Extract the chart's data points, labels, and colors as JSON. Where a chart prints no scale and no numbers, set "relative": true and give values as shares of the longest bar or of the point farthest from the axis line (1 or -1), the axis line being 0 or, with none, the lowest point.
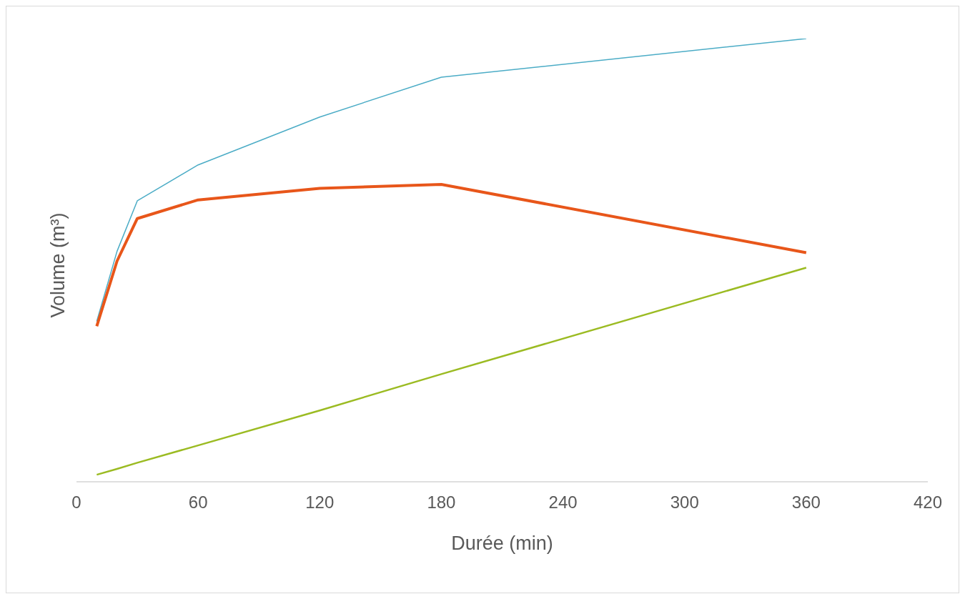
{
  "chart_data": {
    "type": "line",
    "relative": true,
    "xlabel": "Durée (min)",
    "ylabel": "Volume (m³)",
    "x": [
      10,
      20,
      30,
      60,
      120,
      180,
      360
    ],
    "xlim": [
      0,
      420
    ],
    "xticks": [
      0,
      60,
      120,
      180,
      240,
      300,
      360,
      420
    ],
    "grid": false,
    "marker": "none",
    "line_style": "solid",
    "series": [
      {
        "color": "#4bacc6",
        "values": [
          0.362,
          0.52,
          0.634,
          0.715,
          0.823,
          0.913,
          1
        ]
      },
      {
        "color": "#e8561a",
        "values": [
          0.351,
          0.498,
          0.594,
          0.636,
          0.662,
          0.671,
          0.517
        ]
      },
      {
        "color": "#9bbb22",
        "values": [
          0.016,
          0.029,
          0.043,
          0.082,
          0.161,
          0.243,
          0.483
        ]
      }
    ]
  }
}
